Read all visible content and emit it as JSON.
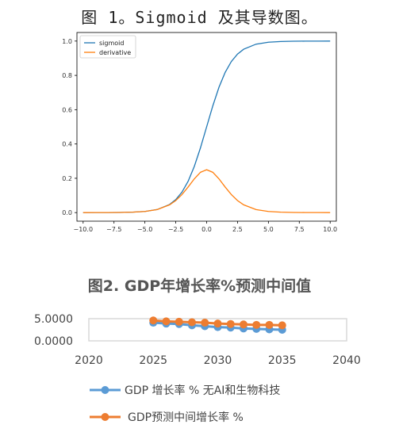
{
  "figure1": {
    "title": "图 1。Sigmoid 及其导数图。"
  },
  "figure2": {
    "title": "图2. GDP年增长率%预测中间值"
  },
  "chart_data": [
    {
      "type": "line",
      "title": "",
      "xlabel": "",
      "ylabel": "",
      "xlim": [
        -10.5,
        10.5
      ],
      "ylim": [
        -0.05,
        1.05
      ],
      "x_ticks": [
        "−10.0",
        "−7.5",
        "−5.0",
        "−2.5",
        "0.0",
        "2.5",
        "5.0",
        "7.5",
        "10.0"
      ],
      "x_tick_values": [
        -10,
        -7.5,
        -5,
        -2.5,
        0,
        2.5,
        5,
        7.5,
        10
      ],
      "y_ticks": [
        "0.0",
        "0.2",
        "0.4",
        "0.6",
        "0.8",
        "1.0"
      ],
      "y_tick_values": [
        0,
        0.2,
        0.4,
        0.6,
        0.8,
        1.0
      ],
      "legend_position": "top-left",
      "x": [
        -10,
        -9,
        -8,
        -7,
        -6,
        -5,
        -4,
        -3,
        -2.5,
        -2,
        -1.5,
        -1,
        -0.5,
        0,
        0.5,
        1,
        1.5,
        2,
        2.5,
        3,
        4,
        5,
        6,
        7,
        8,
        9,
        10
      ],
      "series": [
        {
          "name": "sigmoid",
          "color": "#1f77b4",
          "values": [
            0.0,
            0.0001,
            0.0003,
            0.0009,
            0.0025,
            0.0067,
            0.018,
            0.0474,
            0.0759,
            0.1192,
            0.1824,
            0.2689,
            0.3775,
            0.5,
            0.6225,
            0.7311,
            0.8176,
            0.8808,
            0.9241,
            0.9526,
            0.982,
            0.9933,
            0.9975,
            0.9991,
            0.9997,
            0.9999,
            1.0
          ]
        },
        {
          "name": "derivative",
          "color": "#ff7f0e",
          "values": [
            0.0,
            0.0001,
            0.0003,
            0.0009,
            0.0025,
            0.0066,
            0.0177,
            0.0452,
            0.0701,
            0.105,
            0.1491,
            0.1966,
            0.235,
            0.25,
            0.235,
            0.1966,
            0.1491,
            0.105,
            0.0701,
            0.0452,
            0.0177,
            0.0066,
            0.0025,
            0.0009,
            0.0003,
            0.0001,
            0.0
          ]
        }
      ]
    },
    {
      "type": "line",
      "title": "图2. GDP年增长率%预测中间值",
      "xlim": [
        2020,
        2040
      ],
      "ylim": [
        0,
        5
      ],
      "x_ticks": [
        "2020",
        "2025",
        "2030",
        "2035",
        "2040"
      ],
      "x_tick_values": [
        2020,
        2025,
        2030,
        2035,
        2040
      ],
      "y_ticks": [
        "0.0000",
        "5.0000"
      ],
      "y_tick_values": [
        0,
        5
      ],
      "legend_position": "bottom",
      "x": [
        2025,
        2026,
        2027,
        2028,
        2029,
        2030,
        2031,
        2032,
        2033,
        2034,
        2035
      ],
      "series": [
        {
          "name": "GDP 增长率 %  无AI和生物科技",
          "color": "#5b9bd5",
          "values": [
            4.1,
            3.9,
            3.8,
            3.5,
            3.3,
            3.1,
            3.0,
            2.8,
            2.7,
            2.6,
            2.5
          ]
        },
        {
          "name": "GDP预测中间增长率 %",
          "color": "#ed7d31",
          "values": [
            4.6,
            4.4,
            4.3,
            4.2,
            4.1,
            3.9,
            3.8,
            3.7,
            3.6,
            3.6,
            3.5
          ]
        }
      ]
    }
  ]
}
